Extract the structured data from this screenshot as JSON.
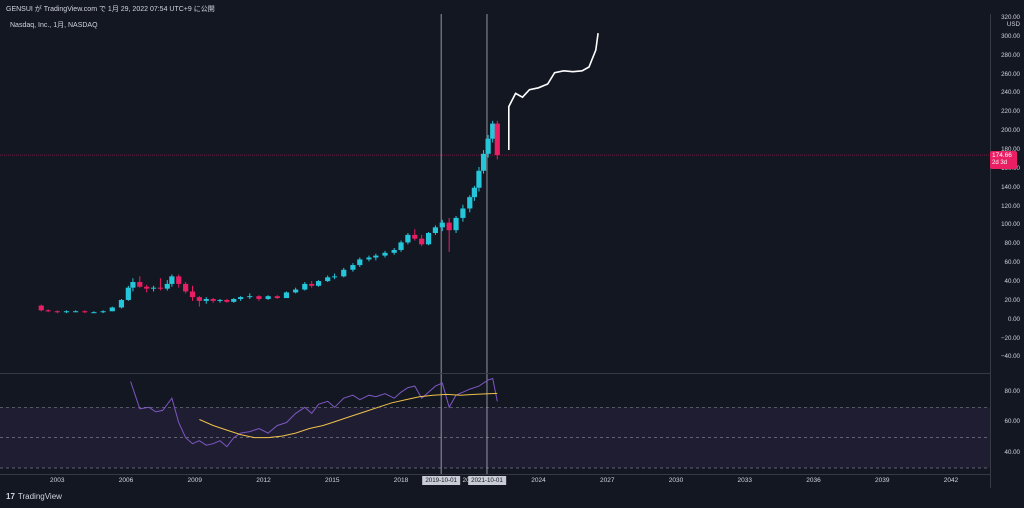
{
  "header": {
    "publish_line": "GENSUI が TradingView.com で 1月 29, 2022 07:54 UTC+9 に公開",
    "symbol_line": "Nasdaq, Inc., 1月, NASDAQ"
  },
  "footer": {
    "brand": "TradingView",
    "brand_logo": "17"
  },
  "colors": {
    "background": "#131722",
    "up": "#26c6da",
    "down": "#e91e63",
    "rsi": "#7e57c2",
    "rsi_ma": "#f0c24b",
    "projection": "#ffffff",
    "current_price_line": "#e91e63"
  },
  "price_badge": {
    "price": "174.66",
    "countdown": "2d 3d"
  },
  "chart_data": [
    {
      "type": "candlestick",
      "title": "Nasdaq, Inc., 1月, NASDAQ",
      "y_unit": "USD",
      "ylim": [
        -48,
        320
      ],
      "y_ticks": [
        "320.00",
        "300.00",
        "280.00",
        "260.00",
        "240.00",
        "220.00",
        "200.00",
        "180.00",
        "160.00",
        "140.00",
        "120.00",
        "100.00",
        "80.00",
        "60.00",
        "40.00",
        "20.00",
        "0.00",
        "−20.00",
        "−40.00"
      ],
      "x_ticks": [
        "2003",
        "2006",
        "2009",
        "2012",
        "2015",
        "2018",
        "2021",
        "2024",
        "2027",
        "2030",
        "2033",
        "2036",
        "2039",
        "2042"
      ],
      "x_range": [
        2000.5,
        2043.7
      ],
      "current_price": 174.66,
      "vertical_markers": [
        "2019-10-01",
        "2021-10-01"
      ],
      "candles": [
        {
          "x": 2002.3,
          "o": 15,
          "h": 16,
          "l": 9,
          "c": 10
        },
        {
          "x": 2002.6,
          "o": 10,
          "h": 11,
          "l": 8,
          "c": 9
        },
        {
          "x": 2003.0,
          "o": 9,
          "h": 10,
          "l": 7,
          "c": 8
        },
        {
          "x": 2003.4,
          "o": 8,
          "h": 10,
          "l": 7,
          "c": 9
        },
        {
          "x": 2003.8,
          "o": 9,
          "h": 10,
          "l": 8,
          "c": 9
        },
        {
          "x": 2004.2,
          "o": 9,
          "h": 10,
          "l": 7,
          "c": 8
        },
        {
          "x": 2004.6,
          "o": 8,
          "h": 9,
          "l": 7,
          "c": 8
        },
        {
          "x": 2005.0,
          "o": 8,
          "h": 10,
          "l": 7,
          "c": 9
        },
        {
          "x": 2005.4,
          "o": 9,
          "h": 14,
          "l": 9,
          "c": 13
        },
        {
          "x": 2005.8,
          "o": 13,
          "h": 22,
          "l": 12,
          "c": 21
        },
        {
          "x": 2006.1,
          "o": 21,
          "h": 36,
          "l": 20,
          "c": 34
        },
        {
          "x": 2006.3,
          "o": 34,
          "h": 44,
          "l": 30,
          "c": 40
        },
        {
          "x": 2006.6,
          "o": 40,
          "h": 46,
          "l": 34,
          "c": 35
        },
        {
          "x": 2006.9,
          "o": 35,
          "h": 37,
          "l": 29,
          "c": 33
        },
        {
          "x": 2007.2,
          "o": 33,
          "h": 36,
          "l": 30,
          "c": 34
        },
        {
          "x": 2007.5,
          "o": 34,
          "h": 44,
          "l": 31,
          "c": 33
        },
        {
          "x": 2007.8,
          "o": 33,
          "h": 42,
          "l": 31,
          "c": 38
        },
        {
          "x": 2008.0,
          "o": 38,
          "h": 48,
          "l": 35,
          "c": 46
        },
        {
          "x": 2008.3,
          "o": 46,
          "h": 48,
          "l": 34,
          "c": 38
        },
        {
          "x": 2008.6,
          "o": 38,
          "h": 40,
          "l": 28,
          "c": 30
        },
        {
          "x": 2008.9,
          "o": 30,
          "h": 36,
          "l": 20,
          "c": 24
        },
        {
          "x": 2009.2,
          "o": 24,
          "h": 25,
          "l": 14,
          "c": 20
        },
        {
          "x": 2009.5,
          "o": 20,
          "h": 24,
          "l": 17,
          "c": 22
        },
        {
          "x": 2009.8,
          "o": 22,
          "h": 23,
          "l": 18,
          "c": 20
        },
        {
          "x": 2010.1,
          "o": 20,
          "h": 22,
          "l": 18,
          "c": 21
        },
        {
          "x": 2010.4,
          "o": 21,
          "h": 22,
          "l": 18,
          "c": 19
        },
        {
          "x": 2010.7,
          "o": 19,
          "h": 23,
          "l": 18,
          "c": 22
        },
        {
          "x": 2011.0,
          "o": 22,
          "h": 25,
          "l": 20,
          "c": 24
        },
        {
          "x": 2011.4,
          "o": 24,
          "h": 28,
          "l": 22,
          "c": 25
        },
        {
          "x": 2011.8,
          "o": 25,
          "h": 26,
          "l": 20,
          "c": 22
        },
        {
          "x": 2012.2,
          "o": 22,
          "h": 26,
          "l": 21,
          "c": 25
        },
        {
          "x": 2012.6,
          "o": 25,
          "h": 26,
          "l": 22,
          "c": 23
        },
        {
          "x": 2013.0,
          "o": 23,
          "h": 30,
          "l": 23,
          "c": 29
        },
        {
          "x": 2013.4,
          "o": 29,
          "h": 34,
          "l": 28,
          "c": 32
        },
        {
          "x": 2013.8,
          "o": 32,
          "h": 40,
          "l": 31,
          "c": 38
        },
        {
          "x": 2014.1,
          "o": 38,
          "h": 41,
          "l": 34,
          "c": 36
        },
        {
          "x": 2014.4,
          "o": 36,
          "h": 42,
          "l": 35,
          "c": 41
        },
        {
          "x": 2014.8,
          "o": 41,
          "h": 47,
          "l": 40,
          "c": 45
        },
        {
          "x": 2015.1,
          "o": 45,
          "h": 49,
          "l": 43,
          "c": 46
        },
        {
          "x": 2015.5,
          "o": 46,
          "h": 55,
          "l": 45,
          "c": 53
        },
        {
          "x": 2015.9,
          "o": 53,
          "h": 60,
          "l": 51,
          "c": 58
        },
        {
          "x": 2016.2,
          "o": 58,
          "h": 66,
          "l": 56,
          "c": 64
        },
        {
          "x": 2016.6,
          "o": 64,
          "h": 68,
          "l": 62,
          "c": 66
        },
        {
          "x": 2016.9,
          "o": 66,
          "h": 70,
          "l": 63,
          "c": 68
        },
        {
          "x": 2017.3,
          "o": 68,
          "h": 73,
          "l": 66,
          "c": 71
        },
        {
          "x": 2017.7,
          "o": 71,
          "h": 76,
          "l": 69,
          "c": 74
        },
        {
          "x": 2018.0,
          "o": 74,
          "h": 84,
          "l": 72,
          "c": 82
        },
        {
          "x": 2018.3,
          "o": 82,
          "h": 92,
          "l": 80,
          "c": 90
        },
        {
          "x": 2018.6,
          "o": 90,
          "h": 96,
          "l": 84,
          "c": 86
        },
        {
          "x": 2018.9,
          "o": 86,
          "h": 90,
          "l": 78,
          "c": 80
        },
        {
          "x": 2019.2,
          "o": 80,
          "h": 93,
          "l": 79,
          "c": 92
        },
        {
          "x": 2019.5,
          "o": 92,
          "h": 100,
          "l": 90,
          "c": 98
        },
        {
          "x": 2019.8,
          "o": 98,
          "h": 106,
          "l": 94,
          "c": 103
        },
        {
          "x": 2020.1,
          "o": 103,
          "h": 108,
          "l": 72,
          "c": 95
        },
        {
          "x": 2020.4,
          "o": 95,
          "h": 110,
          "l": 92,
          "c": 108
        },
        {
          "x": 2020.7,
          "o": 108,
          "h": 122,
          "l": 104,
          "c": 118
        },
        {
          "x": 2021.0,
          "o": 118,
          "h": 132,
          "l": 114,
          "c": 130
        },
        {
          "x": 2021.2,
          "o": 130,
          "h": 142,
          "l": 126,
          "c": 140
        },
        {
          "x": 2021.4,
          "o": 140,
          "h": 162,
          "l": 136,
          "c": 158
        },
        {
          "x": 2021.6,
          "o": 158,
          "h": 180,
          "l": 155,
          "c": 176
        },
        {
          "x": 2021.8,
          "o": 176,
          "h": 196,
          "l": 172,
          "c": 192
        },
        {
          "x": 2022.0,
          "o": 192,
          "h": 211,
          "l": 188,
          "c": 208
        },
        {
          "x": 2022.2,
          "o": 208,
          "h": 211,
          "l": 170,
          "c": 174.66
        }
      ],
      "projection": {
        "name": "",
        "points": [
          [
            2022.7,
            180
          ],
          [
            2022.7,
            226
          ],
          [
            2023.0,
            240
          ],
          [
            2023.3,
            236
          ],
          [
            2023.6,
            244
          ],
          [
            2024.0,
            246
          ],
          [
            2024.4,
            250
          ],
          [
            2024.7,
            262
          ],
          [
            2025.1,
            264
          ],
          [
            2025.5,
            263
          ],
          [
            2025.9,
            264
          ],
          [
            2026.2,
            268
          ],
          [
            2026.5,
            286
          ],
          [
            2026.6,
            304
          ]
        ]
      }
    },
    {
      "type": "line",
      "title": "",
      "ylim": [
        28,
        90
      ],
      "y_ticks": [
        "80.00",
        "60.00",
        "40.00"
      ],
      "bands": {
        "upper": 70,
        "middle": 50,
        "lower": 30
      },
      "series": [
        {
          "name": "",
          "color": "#7e57c2",
          "points": [
            [
              2006.2,
              87
            ],
            [
              2006.6,
              69
            ],
            [
              2007.0,
              70
            ],
            [
              2007.3,
              67
            ],
            [
              2007.6,
              68
            ],
            [
              2008.0,
              76
            ],
            [
              2008.3,
              60
            ],
            [
              2008.6,
              50
            ],
            [
              2008.9,
              46
            ],
            [
              2009.2,
              48
            ],
            [
              2009.5,
              45
            ],
            [
              2009.8,
              46
            ],
            [
              2010.1,
              48
            ],
            [
              2010.4,
              44
            ],
            [
              2010.7,
              50
            ],
            [
              2011.0,
              53
            ],
            [
              2011.4,
              54
            ],
            [
              2011.8,
              56
            ],
            [
              2012.2,
              53
            ],
            [
              2012.6,
              58
            ],
            [
              2013.0,
              60
            ],
            [
              2013.4,
              66
            ],
            [
              2013.8,
              70
            ],
            [
              2014.1,
              66
            ],
            [
              2014.4,
              72
            ],
            [
              2014.8,
              74
            ],
            [
              2015.1,
              70
            ],
            [
              2015.5,
              76
            ],
            [
              2015.9,
              78
            ],
            [
              2016.2,
              75
            ],
            [
              2016.6,
              78
            ],
            [
              2016.9,
              77
            ],
            [
              2017.3,
              79
            ],
            [
              2017.7,
              76
            ],
            [
              2018.0,
              80
            ],
            [
              2018.3,
              83
            ],
            [
              2018.6,
              84
            ],
            [
              2018.9,
              76
            ],
            [
              2019.2,
              80
            ],
            [
              2019.5,
              84
            ],
            [
              2019.8,
              86
            ],
            [
              2020.1,
              70
            ],
            [
              2020.4,
              78
            ],
            [
              2020.7,
              80
            ],
            [
              2021.0,
              82
            ],
            [
              2021.4,
              84
            ],
            [
              2021.8,
              88
            ],
            [
              2022.0,
              89
            ],
            [
              2022.2,
              74
            ]
          ]
        },
        {
          "name": "",
          "color": "#f0c24b",
          "points": [
            [
              2009.2,
              62
            ],
            [
              2009.8,
              58
            ],
            [
              2010.4,
              55
            ],
            [
              2011.0,
              52
            ],
            [
              2011.6,
              50
            ],
            [
              2012.2,
              50
            ],
            [
              2012.8,
              51
            ],
            [
              2013.4,
              53
            ],
            [
              2014.0,
              56
            ],
            [
              2014.6,
              58
            ],
            [
              2015.2,
              61
            ],
            [
              2015.8,
              64
            ],
            [
              2016.4,
              67
            ],
            [
              2017.0,
              70
            ],
            [
              2017.6,
              73
            ],
            [
              2018.2,
              75
            ],
            [
              2018.8,
              77
            ],
            [
              2019.4,
              78
            ],
            [
              2020.0,
              78.5
            ],
            [
              2020.6,
              78
            ],
            [
              2021.2,
              78.5
            ],
            [
              2021.8,
              79
            ],
            [
              2022.2,
              79.2
            ]
          ]
        }
      ]
    }
  ]
}
